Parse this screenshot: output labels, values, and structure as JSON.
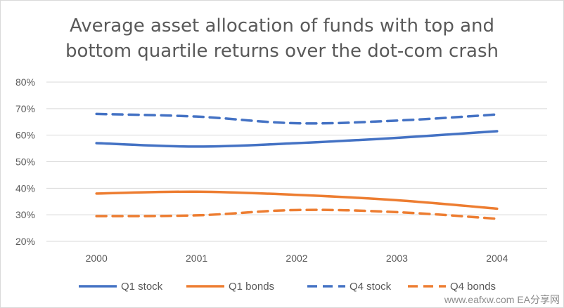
{
  "chart_data": {
    "type": "line",
    "title_line1": "Average asset allocation of funds with top and",
    "title_line2": "bottom quartile returns over the dot-com crash",
    "categories": [
      "2000",
      "2001",
      "2002",
      "2003",
      "2004"
    ],
    "ylim": [
      0.2,
      0.8
    ],
    "yticks": [
      "20%",
      "30%",
      "40%",
      "50%",
      "60%",
      "70%",
      "80%"
    ],
    "grid": true,
    "legend_position": "bottom",
    "series": [
      {
        "name": "Q1 stock",
        "values": [
          0.57,
          0.557,
          0.57,
          0.59,
          0.615
        ],
        "color": "#4472c4",
        "dashed": false
      },
      {
        "name": "Q1 bonds",
        "values": [
          0.38,
          0.387,
          0.375,
          0.355,
          0.323
        ],
        "color": "#ed7d31",
        "dashed": false
      },
      {
        "name": "Q4 stock",
        "values": [
          0.68,
          0.67,
          0.645,
          0.655,
          0.678
        ],
        "color": "#4472c4",
        "dashed": true
      },
      {
        "name": "Q4 bonds",
        "values": [
          0.295,
          0.298,
          0.318,
          0.31,
          0.285
        ],
        "color": "#ed7d31",
        "dashed": true
      }
    ]
  },
  "watermark": "www.eafxw.com  EA分享网"
}
